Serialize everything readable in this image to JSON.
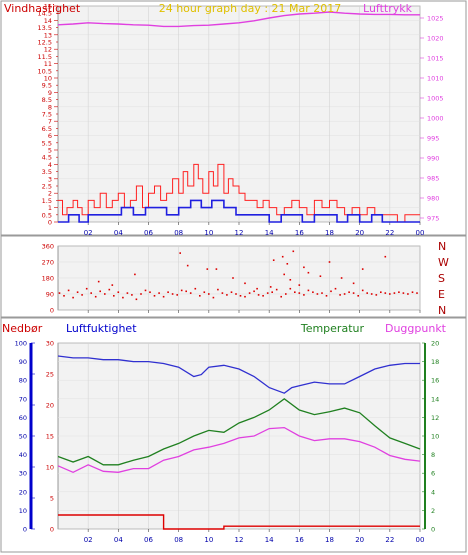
{
  "colors": {
    "frame_border": "#9A9A9A",
    "plot_bg": "#F2F2F2",
    "wind_axis": "#CC0000",
    "pressure": "#E040E0",
    "wind_mean": "#2020E0",
    "gust": "#FF2020",
    "direction": "#DD0000",
    "humidity": "#3030D0",
    "temperature": "#208020",
    "dewpoint": "#E040E0",
    "rain": "#DD0000",
    "rain_axis": "#0000CC",
    "temp_axis": "#208020",
    "title": "#E0C000",
    "dir_labels": "#AA0000"
  },
  "chart_data": [
    {
      "type": "line",
      "title": "24 hour graph day : 21 Mar 2017",
      "y_label_left": "Vindhastighet",
      "y_label_right": "Lufttrykk",
      "y_left_ticks": [
        0,
        0.5,
        1,
        1.5,
        2,
        2.5,
        3,
        3.5,
        4,
        4.5,
        5,
        5.5,
        6,
        6.5,
        7,
        7.5,
        8,
        8.5,
        9,
        9.5,
        10,
        10.5,
        11,
        11.5,
        12,
        12.5,
        13,
        13.5,
        14,
        14.5,
        15
      ],
      "y_left_range": [
        0,
        15
      ],
      "y_right_ticks": [
        975,
        980,
        985,
        990,
        995,
        1000,
        1005,
        1010,
        1015,
        1020,
        1025
      ],
      "y_right_range": [
        974,
        1028
      ],
      "x_ticks": [
        "02",
        "04",
        "06",
        "08",
        "10",
        "12",
        "14",
        "16",
        "18",
        "20",
        "22",
        "00"
      ],
      "x_tick_hours": [
        2,
        4,
        6,
        8,
        10,
        12,
        14,
        16,
        18,
        20,
        22,
        24
      ],
      "x_range_hours": [
        0,
        24
      ],
      "series": [
        {
          "name": "Lufttrykk",
          "axis": "right",
          "x": [
            0,
            1,
            2,
            3,
            4,
            5,
            6,
            7,
            8,
            9,
            10,
            11,
            12,
            13,
            14,
            15,
            16,
            17,
            18,
            19,
            20,
            21,
            22,
            23,
            24
          ],
          "values": [
            1023.3,
            1023.5,
            1023.8,
            1023.6,
            1023.5,
            1023.3,
            1023.2,
            1022.9,
            1022.9,
            1023.1,
            1023.2,
            1023.5,
            1023.8,
            1024.3,
            1025.0,
            1025.6,
            1026.0,
            1026.2,
            1026.5,
            1026.2,
            1026.0,
            1025.9,
            1025.9,
            1025.8,
            1025.8
          ]
        },
        {
          "name": "Vindkast",
          "axis": "left",
          "step": true,
          "x": [
            0,
            0.3,
            0.6,
            1,
            1.3,
            1.6,
            2,
            2.4,
            2.8,
            3.2,
            3.6,
            4,
            4.4,
            4.8,
            5.2,
            5.6,
            6,
            6.4,
            6.8,
            7.2,
            7.6,
            8,
            8.3,
            8.6,
            9,
            9.3,
            9.6,
            10,
            10.3,
            10.6,
            11,
            11.3,
            11.6,
            12,
            12.4,
            12.8,
            13.2,
            13.6,
            14,
            14.5,
            15,
            15.5,
            16,
            16.5,
            17,
            17.5,
            18,
            18.5,
            19,
            19.5,
            20,
            20.5,
            21,
            21.5,
            22,
            22.5,
            23,
            23.5,
            24
          ],
          "values": [
            1.5,
            0.5,
            1.0,
            1.5,
            1.0,
            0.5,
            1.5,
            1.0,
            2.0,
            1.0,
            1.5,
            2.0,
            1.0,
            1.5,
            2.5,
            1.0,
            2.0,
            2.5,
            1.5,
            2.0,
            3.0,
            2.0,
            3.5,
            2.5,
            4.0,
            3.0,
            2.0,
            3.5,
            2.5,
            4.0,
            2.0,
            3.0,
            2.5,
            2.0,
            1.5,
            1.5,
            1.0,
            1.5,
            1.0,
            0.5,
            1.0,
            1.5,
            1.0,
            0.5,
            1.5,
            1.0,
            1.5,
            1.0,
            0.5,
            1.0,
            0.5,
            1.0,
            0.5,
            0.5,
            0.5,
            0.0,
            0.5,
            0.5,
            0.5
          ]
        },
        {
          "name": "Vindhastighet",
          "axis": "left",
          "step": true,
          "x": [
            0,
            0.7,
            1.4,
            2,
            2.8,
            3.5,
            4.2,
            5,
            5.8,
            6.5,
            7.2,
            8,
            8.8,
            9.5,
            10.2,
            11,
            11.8,
            12.5,
            13.2,
            14,
            14.8,
            15.5,
            16.2,
            17,
            17.8,
            18.5,
            19.2,
            20,
            20.8,
            21.5,
            22.2,
            23,
            24
          ],
          "values": [
            0.0,
            0.5,
            0.0,
            0.5,
            0.5,
            0.5,
            1.0,
            0.5,
            1.0,
            1.0,
            0.5,
            1.0,
            1.5,
            1.0,
            1.5,
            1.0,
            0.5,
            0.5,
            0.5,
            0.0,
            0.5,
            0.5,
            0.0,
            0.5,
            0.5,
            0.0,
            0.5,
            0.0,
            0.5,
            0.0,
            0.0,
            0.0,
            0.0
          ]
        }
      ]
    },
    {
      "type": "scatter",
      "y_ticks": [
        0,
        90,
        180,
        270,
        360
      ],
      "y_range": [
        0,
        360
      ],
      "direction_labels": [
        "N",
        "W",
        "S",
        "E",
        "N"
      ],
      "direction_label_values": [
        360,
        270,
        180,
        90,
        0
      ],
      "x_ticks": [
        "02",
        "04",
        "06",
        "08",
        "10",
        "12",
        "14",
        "16",
        "18",
        "20",
        "22",
        "00"
      ],
      "x_tick_hours": [
        2,
        4,
        6,
        8,
        10,
        12,
        14,
        16,
        18,
        20,
        22,
        24
      ],
      "x_range_hours": [
        0,
        24
      ],
      "series": [
        {
          "name": "Vindretning",
          "x": [
            0.1,
            0.4,
            0.7,
            1.0,
            1.3,
            1.6,
            1.9,
            2.2,
            2.5,
            2.8,
            3.1,
            3.4,
            3.7,
            4.0,
            4.3,
            4.6,
            4.9,
            5.2,
            5.5,
            5.8,
            6.1,
            6.4,
            6.7,
            7.0,
            7.3,
            7.6,
            7.9,
            8.2,
            8.5,
            8.8,
            9.1,
            9.4,
            9.7,
            10.0,
            10.3,
            10.6,
            10.9,
            11.2,
            11.5,
            11.8,
            12.1,
            12.4,
            12.7,
            13.0,
            13.3,
            13.6,
            13.9,
            14.2,
            14.5,
            14.8,
            15.1,
            15.4,
            15.7,
            16.0,
            16.3,
            16.6,
            16.9,
            17.2,
            17.5,
            17.8,
            18.1,
            18.4,
            18.7,
            19.0,
            19.3,
            19.6,
            19.9,
            20.2,
            20.5,
            20.8,
            21.1,
            21.4,
            21.7,
            22.0,
            22.3,
            22.6,
            22.9,
            23.2,
            23.5,
            23.8,
            2.7,
            3.6,
            5.1,
            8.1,
            8.6,
            9.9,
            11.6,
            12.4,
            14.1,
            14.3,
            14.9,
            15.2,
            15.6,
            16.3,
            16.6,
            17.4,
            18.0,
            18.8,
            19.6,
            20.2,
            21.7,
            15.0,
            15.4,
            16.0,
            10.5,
            13.2
          ],
          "values": [
            95,
            80,
            110,
            70,
            100,
            85,
            120,
            95,
            75,
            105,
            90,
            115,
            80,
            100,
            70,
            95,
            85,
            60,
            90,
            110,
            100,
            80,
            95,
            75,
            100,
            90,
            85,
            110,
            105,
            95,
            120,
            80,
            100,
            90,
            70,
            115,
            95,
            85,
            100,
            90,
            80,
            75,
            95,
            105,
            85,
            80,
            95,
            100,
            115,
            75,
            90,
            120,
            100,
            95,
            85,
            110,
            100,
            90,
            95,
            80,
            105,
            120,
            85,
            90,
            100,
            95,
            80,
            110,
            95,
            90,
            85,
            100,
            95,
            90,
            95,
            100,
            95,
            90,
            100,
            95,
            160,
            140,
            200,
            320,
            250,
            230,
            180,
            150,
            130,
            280,
            300,
            260,
            330,
            240,
            210,
            190,
            270,
            180,
            150,
            230,
            300,
            200,
            170,
            140,
            230,
            120
          ]
        }
      ]
    },
    {
      "type": "line",
      "labels": {
        "rain": "Nedbør",
        "humidity": "Luftfuktighet",
        "temperature": "Temperatur",
        "dewpoint": "Duggpunkt"
      },
      "rain_axis_ticks": [
        0,
        5,
        10,
        15,
        20,
        25,
        30
      ],
      "rain_axis_range": [
        0,
        30
      ],
      "humidity_axis_ticks": [
        0,
        10,
        20,
        30,
        40,
        50,
        60,
        70,
        80,
        90,
        100
      ],
      "humidity_axis_range": [
        0,
        100
      ],
      "temp_axis_ticks": [
        0,
        2,
        4,
        6,
        8,
        10,
        12,
        14,
        16,
        18,
        20
      ],
      "temp_axis_range": [
        0,
        20
      ],
      "x_ticks": [
        "02",
        "04",
        "06",
        "08",
        "10",
        "12",
        "14",
        "16",
        "18",
        "20",
        "22",
        "00"
      ],
      "x_tick_hours": [
        2,
        4,
        6,
        8,
        10,
        12,
        14,
        16,
        18,
        20,
        22,
        24
      ],
      "x_range_hours": [
        0,
        24
      ],
      "series": [
        {
          "name": "Luftfuktighet",
          "axis": "humidity",
          "x": [
            0,
            1,
            2,
            3,
            4,
            5,
            6,
            7,
            8,
            9,
            9.5,
            10,
            11,
            12,
            13,
            14,
            15,
            15.5,
            16,
            17,
            18,
            19,
            20,
            21,
            22,
            23,
            24
          ],
          "values": [
            93,
            92,
            92,
            91,
            91,
            90,
            90,
            89,
            87,
            82,
            83,
            87,
            88,
            86,
            82,
            76,
            73,
            76,
            77,
            79,
            78,
            78,
            82,
            86,
            88,
            89,
            89
          ]
        },
        {
          "name": "Temperatur",
          "axis": "temp",
          "x": [
            0,
            1,
            2,
            3,
            4,
            5,
            6,
            7,
            8,
            9,
            10,
            11,
            12,
            13,
            14,
            15,
            16,
            17,
            18,
            19,
            20,
            21,
            22,
            23,
            24
          ],
          "values": [
            7.8,
            7.2,
            7.8,
            6.9,
            6.9,
            7.4,
            7.8,
            8.6,
            9.2,
            10.0,
            10.6,
            10.4,
            11.4,
            12.0,
            12.8,
            14.0,
            12.8,
            12.3,
            12.6,
            13.0,
            12.5,
            11.1,
            9.8,
            9.2,
            8.6
          ]
        },
        {
          "name": "Duggpunkt",
          "axis": "temp",
          "x": [
            0,
            1,
            2,
            3,
            4,
            5,
            6,
            7,
            8,
            9,
            10,
            11,
            12,
            13,
            14,
            15,
            16,
            17,
            18,
            19,
            20,
            21,
            22,
            23,
            24
          ],
          "values": [
            6.8,
            6.1,
            6.9,
            6.2,
            6.1,
            6.5,
            6.5,
            7.4,
            7.8,
            8.5,
            8.8,
            9.2,
            9.8,
            10.0,
            10.8,
            10.9,
            10.0,
            9.5,
            9.7,
            9.7,
            9.4,
            8.8,
            7.9,
            7.5,
            7.3
          ]
        },
        {
          "name": "Nedbør",
          "axis": "rain",
          "step": true,
          "x": [
            0,
            7,
            11,
            24
          ],
          "values": [
            1.5,
            0,
            0.3,
            0.3
          ]
        }
      ]
    }
  ]
}
